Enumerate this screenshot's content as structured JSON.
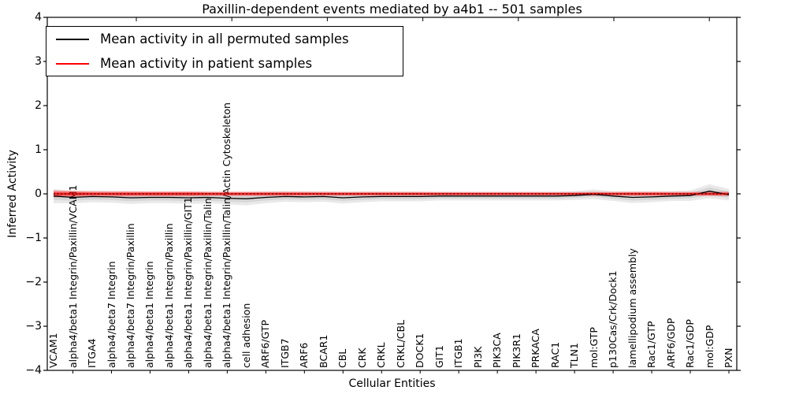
{
  "chart_data": {
    "type": "line",
    "title": "Paxillin-dependent events mediated by a4b1 -- 501 samples",
    "xlabel": "Cellular Entities",
    "ylabel": "Inferred Activity",
    "ylim": [
      -4,
      4
    ],
    "yticks": [
      -4,
      -3,
      -2,
      -1,
      0,
      1,
      2,
      3,
      4
    ],
    "grid": false,
    "legend_position": "upper left",
    "zero_line": {
      "style": "dotted",
      "color": "#000000"
    },
    "categories": [
      "VCAM1",
      "alpha4/beta1 Integrin/Paxillin/VCAM1",
      "ITGA4",
      "alpha4/beta7 Integrin",
      "alpha4/beta7 Integrin/Paxillin",
      "alpha4/beta1 Integrin",
      "alpha4/beta1 Integrin/Paxillin",
      "alpha4/beta1 Integrin/Paxillin/GIT1",
      "alpha4/beta1 Integrin/Paxillin/Talin",
      "alpha4/beta1 Integrin/Paxillin/Talin/Actin Cytoskeleton",
      "cell adhesion",
      "ARF6/GTP",
      "ITGB7",
      "ARF6",
      "BCAR1",
      "CBL",
      "CRK",
      "CRKL",
      "CRKL/CBL",
      "DOCK1",
      "GIT1",
      "ITGB1",
      "PI3K",
      "PIK3CA",
      "PIK3R1",
      "PRKACA",
      "RAC1",
      "TLN1",
      "mol:GTP",
      "p130Cas/Crk/Dock1",
      "lamellipodium assembly",
      "Rac1/GTP",
      "ARF6/GDP",
      "Rac1/GDP",
      "mol:GDP",
      "PXN"
    ],
    "series": [
      {
        "name": "Mean activity in all permuted samples",
        "color": "#000000",
        "values": [
          -0.05,
          -0.08,
          -0.06,
          -0.07,
          -0.09,
          -0.08,
          -0.08,
          -0.09,
          -0.08,
          -0.1,
          -0.11,
          -0.08,
          -0.06,
          -0.07,
          -0.06,
          -0.09,
          -0.07,
          -0.06,
          -0.06,
          -0.06,
          -0.05,
          -0.05,
          -0.05,
          -0.05,
          -0.05,
          -0.05,
          -0.05,
          -0.04,
          -0.01,
          -0.05,
          -0.08,
          -0.07,
          -0.05,
          -0.04,
          0.06,
          -0.02
        ],
        "band_halfwidth": [
          0.16,
          0.14,
          0.13,
          0.13,
          0.14,
          0.13,
          0.13,
          0.14,
          0.13,
          0.14,
          0.15,
          0.13,
          0.12,
          0.12,
          0.12,
          0.13,
          0.12,
          0.11,
          0.11,
          0.11,
          0.1,
          0.1,
          0.1,
          0.1,
          0.1,
          0.1,
          0.1,
          0.1,
          0.11,
          0.11,
          0.13,
          0.12,
          0.11,
          0.12,
          0.16,
          0.13
        ]
      },
      {
        "name": "Mean activity in patient samples",
        "color": "#ff0000",
        "values": [
          0,
          0,
          0,
          0,
          0,
          0,
          0,
          0,
          0,
          0,
          0,
          0,
          0,
          0,
          0,
          0,
          0,
          0,
          0,
          0,
          0,
          0,
          0,
          0,
          0,
          0,
          0,
          0,
          0,
          0,
          0,
          0,
          0,
          0,
          0,
          0
        ],
        "band_halfwidth": [
          0.08,
          0.07,
          0.06,
          0.06,
          0.06,
          0.055,
          0.055,
          0.055,
          0.05,
          0.05,
          0.05,
          0.05,
          0.05,
          0.05,
          0.045,
          0.045,
          0.045,
          0.045,
          0.045,
          0.045,
          0.04,
          0.04,
          0.04,
          0.04,
          0.04,
          0.04,
          0.04,
          0.04,
          0.045,
          0.045,
          0.05,
          0.05,
          0.045,
          0.045,
          0.05,
          0.05
        ]
      }
    ]
  }
}
